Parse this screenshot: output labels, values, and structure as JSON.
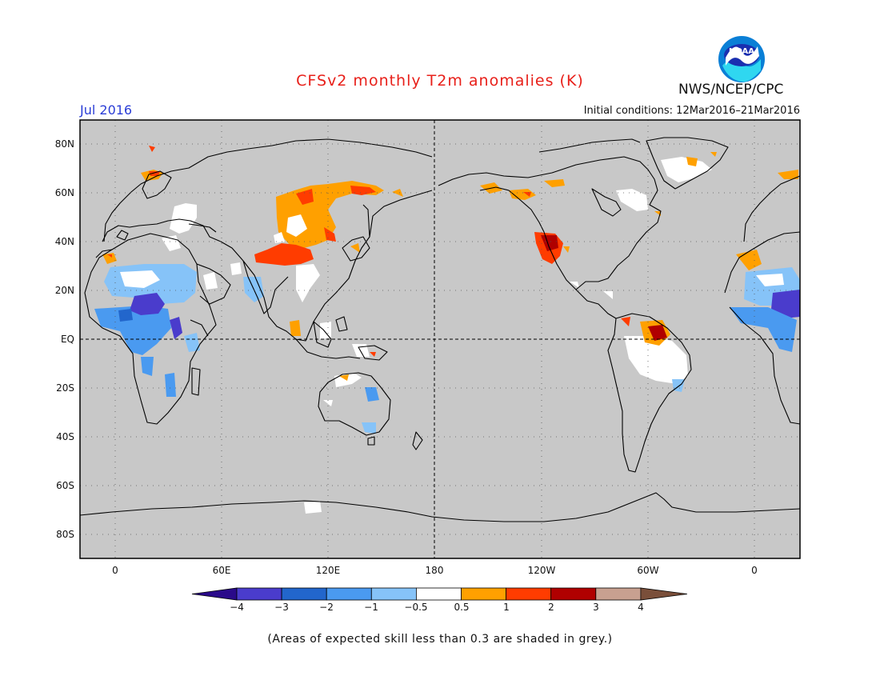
{
  "title": "CFSv2 monthly T2m anomalies (K)",
  "valid_month": "Jul 2016",
  "initial_conditions": "Initial conditions: 12Mar2016–21Mar2016",
  "org": "NWS/NCEP/CPC",
  "logo_text": "NOAA",
  "footer": "(Areas of expected skill less than 0.3 are shaded in grey.)",
  "map": {
    "background_color": "#c8c8c8",
    "lat_labels": [
      "80N",
      "60N",
      "40N",
      "20N",
      "EQ",
      "20S",
      "40S",
      "60S",
      "80S"
    ],
    "lon_labels": [
      "0",
      "60E",
      "120E",
      "180",
      "120W",
      "60W",
      "0"
    ],
    "dateline": "180",
    "equator": "EQ"
  },
  "colorbar": {
    "ticks": [
      "−4",
      "−3",
      "−2",
      "−1",
      "−0.5",
      "0.5",
      "1",
      "2",
      "3",
      "4"
    ],
    "colors": [
      "#2a0a8a",
      "#4a3ccc",
      "#2266cc",
      "#4a9af0",
      "#86c3f8",
      "#ffffff",
      "#ffa000",
      "#ff3c00",
      "#b00000",
      "#c8a090",
      "#7a4f3a"
    ]
  },
  "anomaly_regions": [
    {
      "area": "N Eurasia / Mongolia",
      "category": "0.5 to 1"
    },
    {
      "area": "N China",
      "category": "1 to 2"
    },
    {
      "area": "W United States",
      "category": "2 to 3"
    },
    {
      "area": "N South America",
      "category": "2 to 3"
    },
    {
      "area": "Sahel / W Africa",
      "category": "-3 to -2"
    },
    {
      "area": "E Africa",
      "category": "-3 to -2"
    },
    {
      "area": "Central Africa",
      "category": "-2 to -1"
    },
    {
      "area": "Brazil",
      "category": "-0.5 to 0.5"
    },
    {
      "area": "Greenland",
      "category": "-0.5 to 0.5"
    }
  ]
}
